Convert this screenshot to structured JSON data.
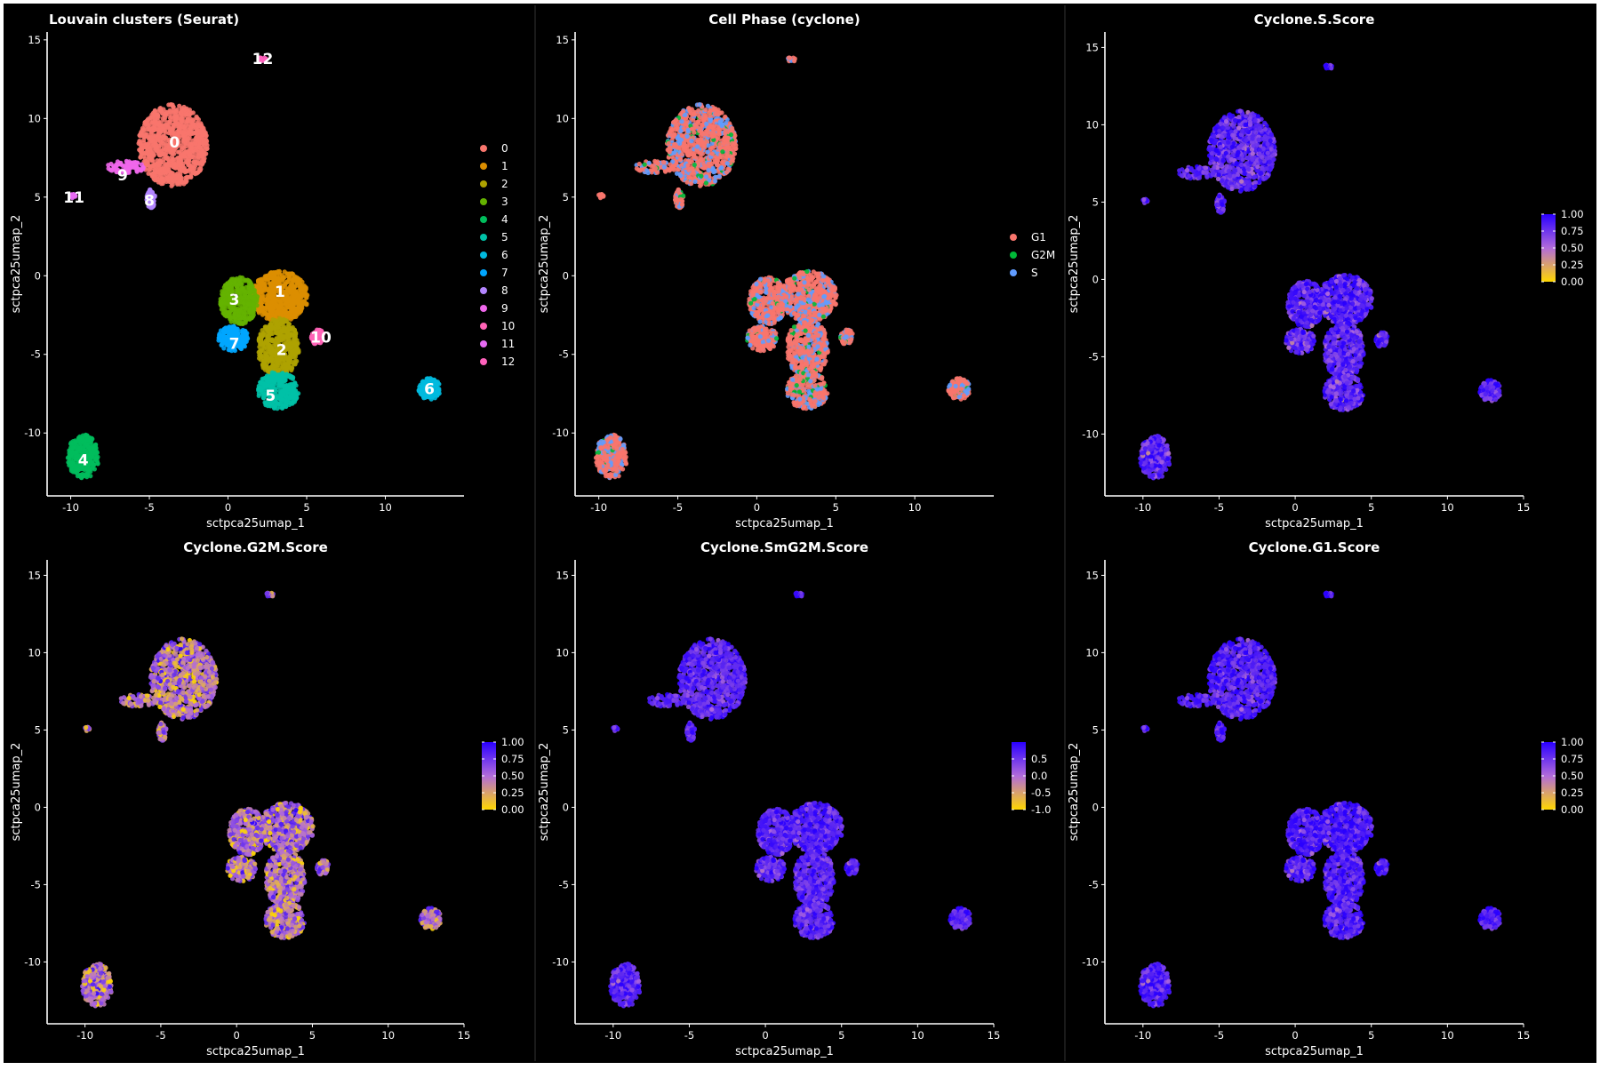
{
  "chart_data": [
    {
      "type": "scatter",
      "title": "Louvain clusters (Seurat)",
      "xlabel": "sctpca25umap_1",
      "ylabel": "sctpca25umap_2",
      "xlim": [
        -11.5,
        15
      ],
      "ylim": [
        -14,
        15.5
      ],
      "xticks": [
        -10,
        -5,
        0,
        5,
        10
      ],
      "yticks": [
        -10,
        -5,
        0,
        5,
        10,
        15
      ],
      "legend": {
        "kind": "discrete",
        "placement": "right",
        "title": ""
      },
      "series": [
        {
          "name": "0",
          "color": "#F8766D",
          "cx": -3.5,
          "cy": 8.3,
          "rx": 2.2,
          "ry": 2.6,
          "n": 900,
          "label_x": -3.4,
          "label_y": 8.5
        },
        {
          "name": "1",
          "color": "#DB8E00",
          "cx": 3.3,
          "cy": -1.3,
          "rx": 1.8,
          "ry": 1.6,
          "n": 600,
          "label_x": 3.3,
          "label_y": -1.0
        },
        {
          "name": "2",
          "color": "#AEA200",
          "cx": 3.2,
          "cy": -4.6,
          "rx": 1.3,
          "ry": 1.9,
          "n": 450,
          "label_x": 3.4,
          "label_y": -4.7
        },
        {
          "name": "3",
          "color": "#64B200",
          "cx": 0.7,
          "cy": -1.6,
          "rx": 1.2,
          "ry": 1.5,
          "n": 350,
          "label_x": 0.4,
          "label_y": -1.5
        },
        {
          "name": "4",
          "color": "#00BD5C",
          "cx": -9.2,
          "cy": -11.5,
          "rx": 1.0,
          "ry": 1.4,
          "n": 300,
          "label_x": -9.2,
          "label_y": -11.7
        },
        {
          "name": "5",
          "color": "#00C1A7",
          "cx": 3.2,
          "cy": -7.3,
          "rx": 1.3,
          "ry": 1.2,
          "n": 300,
          "label_x": 2.7,
          "label_y": -7.6
        },
        {
          "name": "6",
          "color": "#00BADE",
          "cx": 12.8,
          "cy": -7.2,
          "rx": 0.7,
          "ry": 0.7,
          "n": 150,
          "label_x": 12.8,
          "label_y": -7.2
        },
        {
          "name": "7",
          "color": "#00A6FF",
          "cx": 0.3,
          "cy": -4.0,
          "rx": 1.0,
          "ry": 0.8,
          "n": 200,
          "label_x": 0.4,
          "label_y": -4.3
        },
        {
          "name": "8",
          "color": "#B385FF",
          "cx": -4.9,
          "cy": 4.9,
          "rx": 0.3,
          "ry": 0.6,
          "n": 70,
          "label_x": -5.0,
          "label_y": 4.8
        },
        {
          "name": "9",
          "color": "#EF67EB",
          "cx": -6.5,
          "cy": 6.9,
          "rx": 1.2,
          "ry": 0.4,
          "n": 80,
          "label_x": -6.7,
          "label_y": 6.4
        },
        {
          "name": "10",
          "color": "#FF63B6",
          "cx": 5.7,
          "cy": -3.9,
          "rx": 0.4,
          "ry": 0.5,
          "n": 60,
          "label_x": 5.9,
          "label_y": -3.9
        },
        {
          "name": "11",
          "color": "#E76BF3",
          "cx": -9.9,
          "cy": 5.1,
          "rx": 0.2,
          "ry": 0.2,
          "n": 15,
          "label_x": -9.8,
          "label_y": 5.0
        },
        {
          "name": "12",
          "color": "#FF62BC",
          "cx": 2.2,
          "cy": 13.8,
          "rx": 0.3,
          "ry": 0.2,
          "n": 15,
          "label_x": 2.2,
          "label_y": 13.8
        }
      ]
    },
    {
      "type": "scatter",
      "title": "Cell Phase (cyclone)",
      "xlabel": "sctpca25umap_1",
      "ylabel": "sctpca25umap_2",
      "xlim": [
        -11.5,
        15
      ],
      "ylim": [
        -14,
        15.5
      ],
      "xticks": [
        -10,
        -5,
        0,
        5,
        10
      ],
      "yticks": [
        -10,
        -5,
        0,
        5,
        10,
        15
      ],
      "legend": {
        "kind": "discrete",
        "placement": "right",
        "title": ""
      },
      "categories": [
        {
          "name": "G1",
          "color": "#F8766D",
          "fraction": 0.72
        },
        {
          "name": "G2M",
          "color": "#00BA38",
          "fraction": 0.05
        },
        {
          "name": "S",
          "color": "#619CFF",
          "fraction": 0.23
        }
      ]
    },
    {
      "type": "scatter",
      "title": "Cyclone.S.Score",
      "xlabel": "sctpca25umap_1",
      "ylabel": "sctpca25umap_2",
      "xlim": [
        -12.5,
        15
      ],
      "ylim": [
        -14,
        16
      ],
      "xticks": [
        -10,
        -5,
        0,
        5,
        10,
        15
      ],
      "yticks": [
        -10,
        -5,
        0,
        5,
        10,
        15
      ],
      "legend": {
        "kind": "continuous",
        "placement": "right",
        "low_color": "#FFD700",
        "mid_color": "#B26BDB",
        "high_color": "#2A00FF",
        "min": 0,
        "max": 1,
        "ticks": [
          "1.00",
          "0.75",
          "0.50",
          "0.25",
          "0.00"
        ]
      },
      "score_mean": 0.82,
      "score_spread": 0.15
    },
    {
      "type": "scatter",
      "title": "Cyclone.G2M.Score",
      "xlabel": "sctpca25umap_1",
      "ylabel": "sctpca25umap_2",
      "xlim": [
        -12.5,
        15
      ],
      "ylim": [
        -14,
        16
      ],
      "xticks": [
        -10,
        -5,
        0,
        5,
        10,
        15
      ],
      "yticks": [
        -10,
        -5,
        0,
        5,
        10,
        15
      ],
      "legend": {
        "kind": "continuous",
        "placement": "right",
        "low_color": "#FFD700",
        "mid_color": "#B26BDB",
        "high_color": "#2A00FF",
        "min": 0,
        "max": 1,
        "ticks": [
          "1.00",
          "0.75",
          "0.50",
          "0.25",
          "0.00"
        ]
      },
      "score_mean": 0.45,
      "score_spread": 0.25
    },
    {
      "type": "scatter",
      "title": "Cyclone.SmG2M.Score",
      "xlabel": "sctpca25umap_1",
      "ylabel": "sctpca25umap_2",
      "xlim": [
        -12.5,
        15
      ],
      "ylim": [
        -14,
        16
      ],
      "xticks": [
        -10,
        -5,
        0,
        5,
        10,
        15
      ],
      "yticks": [
        -10,
        -5,
        0,
        5,
        10,
        15
      ],
      "legend": {
        "kind": "continuous",
        "placement": "right",
        "low_color": "#FFD700",
        "mid_color": "#B26BDB",
        "high_color": "#2A00FF",
        "min": -1.0,
        "max": 1.0,
        "ticks": [
          "0.5",
          "0.0",
          "-0.5",
          "-1.0"
        ]
      },
      "score_mean": 0.82,
      "score_spread": 0.12
    },
    {
      "type": "scatter",
      "title": "Cyclone.G1.Score",
      "xlabel": "sctpca25umap_1",
      "ylabel": "sctpca25umap_2",
      "xlim": [
        -12.5,
        15
      ],
      "ylim": [
        -14,
        16
      ],
      "xticks": [
        -10,
        -5,
        0,
        5,
        10,
        15
      ],
      "yticks": [
        -10,
        -5,
        0,
        5,
        10,
        15
      ],
      "legend": {
        "kind": "continuous",
        "placement": "right",
        "low_color": "#FFD700",
        "mid_color": "#B26BDB",
        "high_color": "#2A00FF",
        "min": 0,
        "max": 1,
        "ticks": [
          "1.00",
          "0.75",
          "0.50",
          "0.25",
          "0.00"
        ]
      },
      "score_mean": 0.86,
      "score_spread": 0.14
    }
  ]
}
